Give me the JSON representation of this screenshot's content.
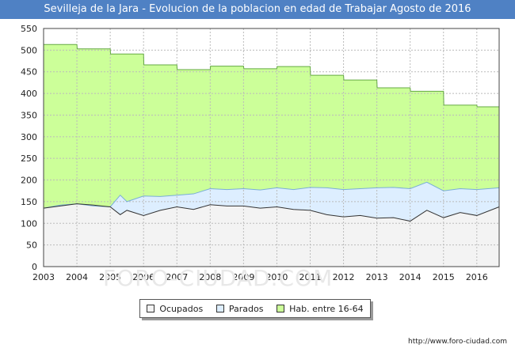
{
  "title": "Sevilleja de la Jara - Evolucion de la poblacion en edad de Trabajar Agosto de 2016",
  "source": "http://www.foro-ciudad.com",
  "watermark": "FORO-CIUDAD.COM",
  "chart_data": {
    "type": "area",
    "x_ticks": [
      "2003",
      "2004",
      "2005",
      "2006",
      "2007",
      "2008",
      "2009",
      "2010",
      "2011",
      "2012",
      "2013",
      "2014",
      "2015",
      "2016"
    ],
    "x_range": [
      2003,
      2016.67
    ],
    "y_ticks": [
      0,
      50,
      100,
      150,
      200,
      250,
      300,
      350,
      400,
      450,
      500,
      550
    ],
    "ylim": [
      0,
      550
    ],
    "grid": true,
    "legend_position": "bottom-center",
    "series": [
      {
        "name": "Hab. entre 16-64",
        "color": "#ccff99",
        "line_color": "#66aa44",
        "x": [
          2003.0,
          2004.0,
          2004.01,
          2005.0,
          2005.01,
          2006.0,
          2006.01,
          2007.0,
          2007.01,
          2008.0,
          2008.01,
          2009.0,
          2009.01,
          2010.0,
          2010.01,
          2011.0,
          2011.01,
          2012.0,
          2012.01,
          2013.0,
          2013.01,
          2014.0,
          2014.01,
          2015.0,
          2015.01,
          2016.0,
          2016.01,
          2016.67
        ],
        "values": [
          513,
          513,
          503,
          503,
          491,
          491,
          466,
          466,
          455,
          455,
          463,
          463,
          457,
          457,
          462,
          462,
          442,
          442,
          431,
          431,
          413,
          413,
          405,
          405,
          373,
          373,
          369,
          369
        ]
      },
      {
        "name": "Parados",
        "color": "#ddeeff",
        "line_color": "#7aaed6",
        "x": [
          2003.0,
          2003.5,
          2004.0,
          2004.5,
          2005.0,
          2005.3,
          2005.5,
          2006.0,
          2006.5,
          2007.0,
          2007.5,
          2008.0,
          2008.5,
          2009.0,
          2009.5,
          2010.0,
          2010.5,
          2011.0,
          2011.5,
          2012.0,
          2012.5,
          2013.0,
          2013.5,
          2014.0,
          2014.5,
          2015.0,
          2015.5,
          2016.0,
          2016.67
        ],
        "values": [
          135,
          142,
          145,
          140,
          138,
          165,
          150,
          163,
          162,
          165,
          168,
          180,
          178,
          180,
          177,
          182,
          178,
          183,
          182,
          178,
          180,
          182,
          183,
          180,
          195,
          175,
          180,
          178,
          182
        ]
      },
      {
        "name": "Ocupados",
        "color": "#f3f3f3",
        "line_color": "#333333",
        "x": [
          2003.0,
          2003.5,
          2004.0,
          2004.5,
          2005.0,
          2005.3,
          2005.5,
          2006.0,
          2006.5,
          2007.0,
          2007.5,
          2008.0,
          2008.5,
          2009.0,
          2009.5,
          2010.0,
          2010.5,
          2011.0,
          2011.5,
          2012.0,
          2012.5,
          2013.0,
          2013.5,
          2014.0,
          2014.5,
          2015.0,
          2015.5,
          2016.0,
          2016.67
        ],
        "values": [
          135,
          140,
          145,
          142,
          138,
          120,
          130,
          118,
          130,
          138,
          132,
          143,
          140,
          140,
          135,
          138,
          132,
          130,
          120,
          115,
          118,
          112,
          113,
          105,
          130,
          113,
          125,
          118,
          138
        ]
      }
    ]
  }
}
